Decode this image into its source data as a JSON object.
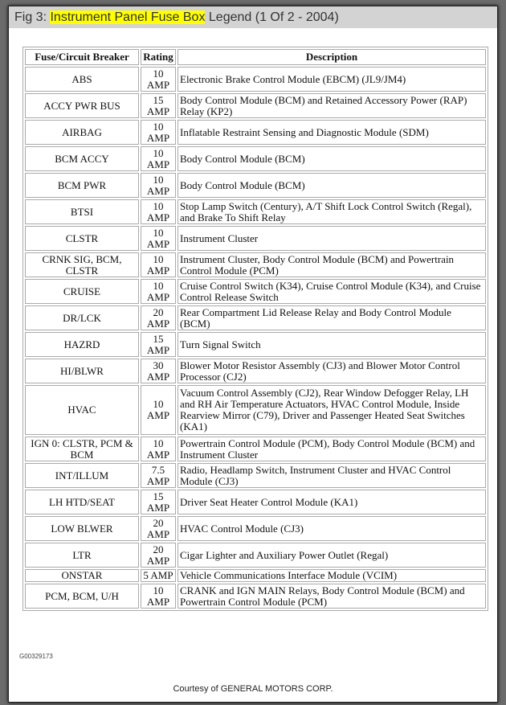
{
  "header": {
    "prefix": "Fig 3: ",
    "highlight": "Instrument Panel Fuse Box",
    "suffix": " Legend (1 Of 2 - 2004)",
    "highlight_color": "#ffff00"
  },
  "table": {
    "columns": [
      "Fuse/Circuit Breaker",
      "Rating",
      "Description"
    ],
    "rows": [
      {
        "fuse": "ABS",
        "rating": "10 AMP",
        "desc": "Electronic Brake Control Module (EBCM) (JL9/JM4)"
      },
      {
        "fuse": "ACCY PWR BUS",
        "rating": "15 AMP",
        "desc": "Body Control Module (BCM) and Retained Accessory Power (RAP) Relay (KP2)"
      },
      {
        "fuse": "AIRBAG",
        "rating": "10 AMP",
        "desc": "Inflatable Restraint Sensing and Diagnostic Module (SDM)"
      },
      {
        "fuse": "BCM ACCY",
        "rating": "10 AMP",
        "desc": "Body Control Module (BCM)"
      },
      {
        "fuse": "BCM PWR",
        "rating": "10 AMP",
        "desc": "Body Control Module (BCM)"
      },
      {
        "fuse": "BTSI",
        "rating": "10 AMP",
        "desc": "Stop Lamp Switch (Century), A/T Shift Lock Control Switch (Regal), and Brake To Shift Relay"
      },
      {
        "fuse": "CLSTR",
        "rating": "10 AMP",
        "desc": "Instrument Cluster"
      },
      {
        "fuse": "CRNK SIG, BCM, CLSTR",
        "rating": "10 AMP",
        "desc": "Instrument Cluster, Body Control Module (BCM) and Powertrain Control Module (PCM)"
      },
      {
        "fuse": "CRUISE",
        "rating": "10 AMP",
        "desc": "Cruise Control Switch (K34), Cruise Control Module (K34), and Cruise Control Release Switch"
      },
      {
        "fuse": "DR/LCK",
        "rating": "20 AMP",
        "desc": "Rear Compartment Lid Release Relay and Body Control Module (BCM)"
      },
      {
        "fuse": "HAZRD",
        "rating": "15 AMP",
        "desc": "Turn Signal Switch"
      },
      {
        "fuse": "HI/BLWR",
        "rating": "30 AMP",
        "desc": "Blower Motor Resistor Assembly (CJ3) and Blower Motor Control Processor (CJ2)"
      },
      {
        "fuse": "HVAC",
        "rating": "10 AMP",
        "desc": "Vacuum Control Assembly (CJ2), Rear Window Defogger Relay, LH and RH Air Temperature Actuators, HVAC Control Module, Inside Rearview Mirror (C79), Driver and Passenger Heated Seat Switches (KA1)"
      },
      {
        "fuse": "IGN 0: CLSTR, PCM & BCM",
        "rating": "10 AMP",
        "desc": "Powertrain Control Module (PCM), Body Control Module (BCM) and Instrument Cluster"
      },
      {
        "fuse": "INT/ILLUM",
        "rating": "7.5 AMP",
        "desc": "Radio, Headlamp Switch, Instrument Cluster and HVAC Control Module (CJ3)"
      },
      {
        "fuse": "LH HTD/SEAT",
        "rating": "15 AMP",
        "desc": "Driver Seat Heater Control Module (KA1)"
      },
      {
        "fuse": "LOW BLWER",
        "rating": "20 AMP",
        "desc": "HVAC Control Module (CJ3)"
      },
      {
        "fuse": "LTR",
        "rating": "20 AMP",
        "desc": "Cigar Lighter and Auxiliary Power Outlet (Regal)"
      },
      {
        "fuse": "ONSTAR",
        "rating": "5 AMP",
        "desc": "Vehicle Communications Interface Module (VCIM)"
      },
      {
        "fuse": "PCM, BCM, U/H",
        "rating": "10 AMP",
        "desc": "CRANK and IGN MAIN Relays, Body Control Module (BCM) and Powertrain Control Module (PCM)"
      }
    ]
  },
  "figure_code": "G00329173",
  "courtesy": "Courtesy of GENERAL MOTORS CORP."
}
